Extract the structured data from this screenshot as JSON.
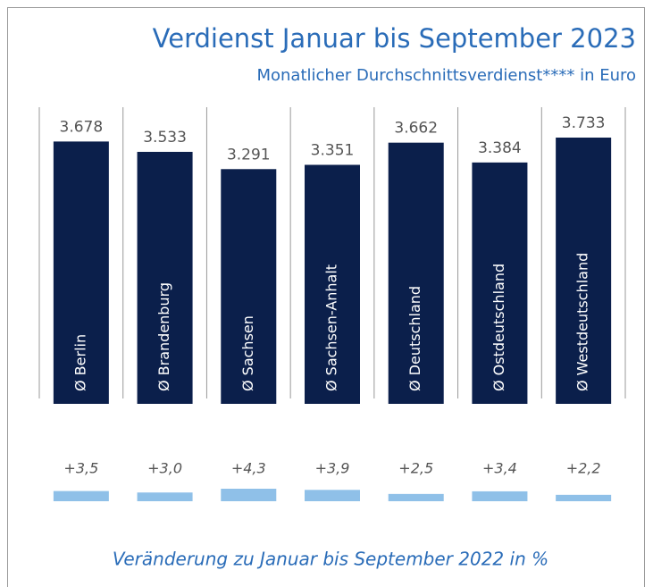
{
  "chart_data": [
    {
      "type": "bar",
      "title": "Verdienst Januar bis September 2023",
      "subtitle": "Monatlicher Durchschnittsverdienst**** in Euro",
      "categories": [
        "Ø Berlin",
        "Ø Brandenburg",
        "Ø Sachsen",
        "Ø Sachsen-Anhalt",
        "Ø Deutschland",
        "Ø Ostdeutschland",
        "Ø Westdeutschland"
      ],
      "values": [
        3678,
        3533,
        3291,
        3351,
        3662,
        3384,
        3733
      ],
      "value_labels": [
        "3.678",
        "3.533",
        "3.291",
        "3.351",
        "3.662",
        "3.384",
        "3.733"
      ],
      "color": "#0b1f4b"
    },
    {
      "type": "bar",
      "annotation": "Veränderung zu Januar bis September 2022 in %",
      "values": [
        3.5,
        3.0,
        4.3,
        3.9,
        2.5,
        3.4,
        2.2
      ],
      "value_labels": [
        "+3,5",
        "+3,0",
        "+4,3",
        "+3,9",
        "+2,5",
        "+3,4",
        "+2,2"
      ],
      "color": "#8fc0e8"
    }
  ]
}
